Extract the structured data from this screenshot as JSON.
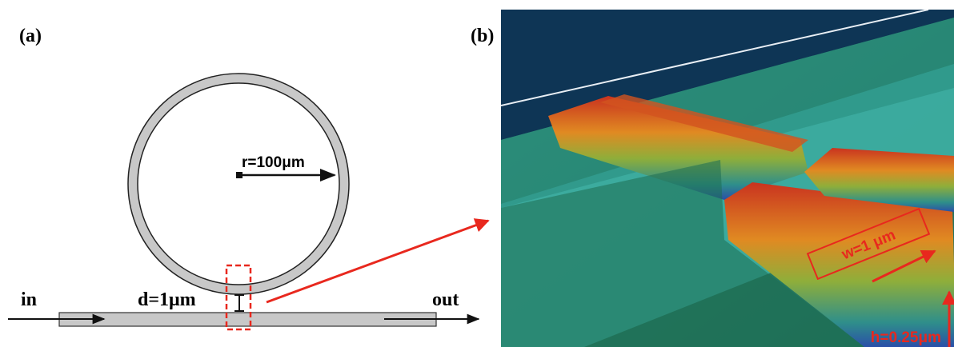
{
  "panel_a": {
    "label": "(a)",
    "radius_label": "r=100μm",
    "input_label": "in",
    "gap_label": "d=1μm",
    "output_label": "out"
  },
  "panel_b": {
    "label": "(b)",
    "width_label": "w=1 μm",
    "height_label": "h=0.25μm"
  }
}
